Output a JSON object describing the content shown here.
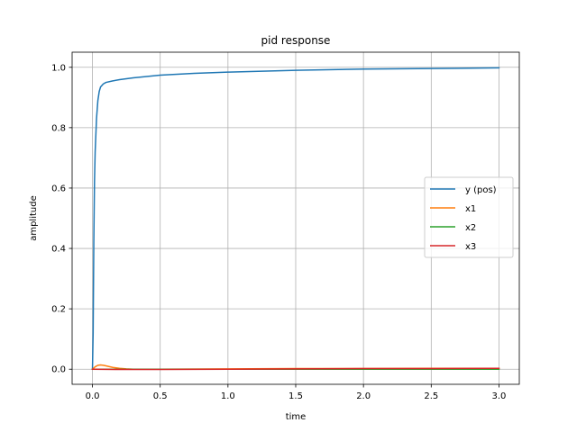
{
  "chart_data": {
    "type": "line",
    "title": "pid response",
    "xlabel": "time",
    "ylabel": "amplitude",
    "xlim": [
      -0.15,
      3.15
    ],
    "ylim": [
      -0.05,
      1.05
    ],
    "xticks": [
      0.0,
      0.5,
      1.0,
      1.5,
      2.0,
      2.5,
      3.0
    ],
    "xtick_labels": [
      "0.0",
      "0.5",
      "1.0",
      "1.5",
      "2.0",
      "2.5",
      "3.0"
    ],
    "yticks": [
      0.0,
      0.2,
      0.4,
      0.6,
      0.8,
      1.0
    ],
    "ytick_labels": [
      "0.0",
      "0.2",
      "0.4",
      "0.6",
      "0.8",
      "1.0"
    ],
    "grid": true,
    "legend_position": "center-right",
    "series": [
      {
        "name": "y (pos)",
        "color": "#1f77b4",
        "x": [
          0,
          0.005,
          0.01,
          0.015,
          0.02,
          0.03,
          0.04,
          0.05,
          0.06,
          0.08,
          0.1,
          0.15,
          0.2,
          0.3,
          0.5,
          0.75,
          1.0,
          1.5,
          2.0,
          2.5,
          3.0
        ],
        "y": [
          0,
          0.12,
          0.42,
          0.62,
          0.72,
          0.83,
          0.89,
          0.92,
          0.935,
          0.945,
          0.95,
          0.955,
          0.959,
          0.965,
          0.974,
          0.98,
          0.984,
          0.99,
          0.994,
          0.996,
          0.998
        ]
      },
      {
        "name": "x1",
        "color": "#ff7f0e",
        "x": [
          0,
          0.02,
          0.04,
          0.06,
          0.08,
          0.1,
          0.15,
          0.2,
          0.25,
          0.3,
          0.5,
          1.0,
          1.5,
          2.0,
          2.5,
          3.0
        ],
        "y": [
          0,
          0.008,
          0.013,
          0.014,
          0.013,
          0.011,
          0.006,
          0.003,
          0.001,
          0.0,
          0.0,
          0.001,
          0.002,
          0.002,
          0.003,
          0.003
        ]
      },
      {
        "name": "x2",
        "color": "#2ca02c",
        "x": [
          0,
          0.5,
          1.0,
          1.5,
          2.0,
          2.5,
          3.0
        ],
        "y": [
          0,
          0.0,
          0.0,
          0.0,
          0.0,
          0.0,
          0.0
        ]
      },
      {
        "name": "x3",
        "color": "#d62728",
        "x": [
          0,
          0.2,
          0.5,
          1.0,
          1.5,
          2.0,
          2.5,
          3.0
        ],
        "y": [
          0,
          -0.001,
          -0.001,
          0.0,
          0.001,
          0.002,
          0.002,
          0.003
        ]
      }
    ]
  }
}
